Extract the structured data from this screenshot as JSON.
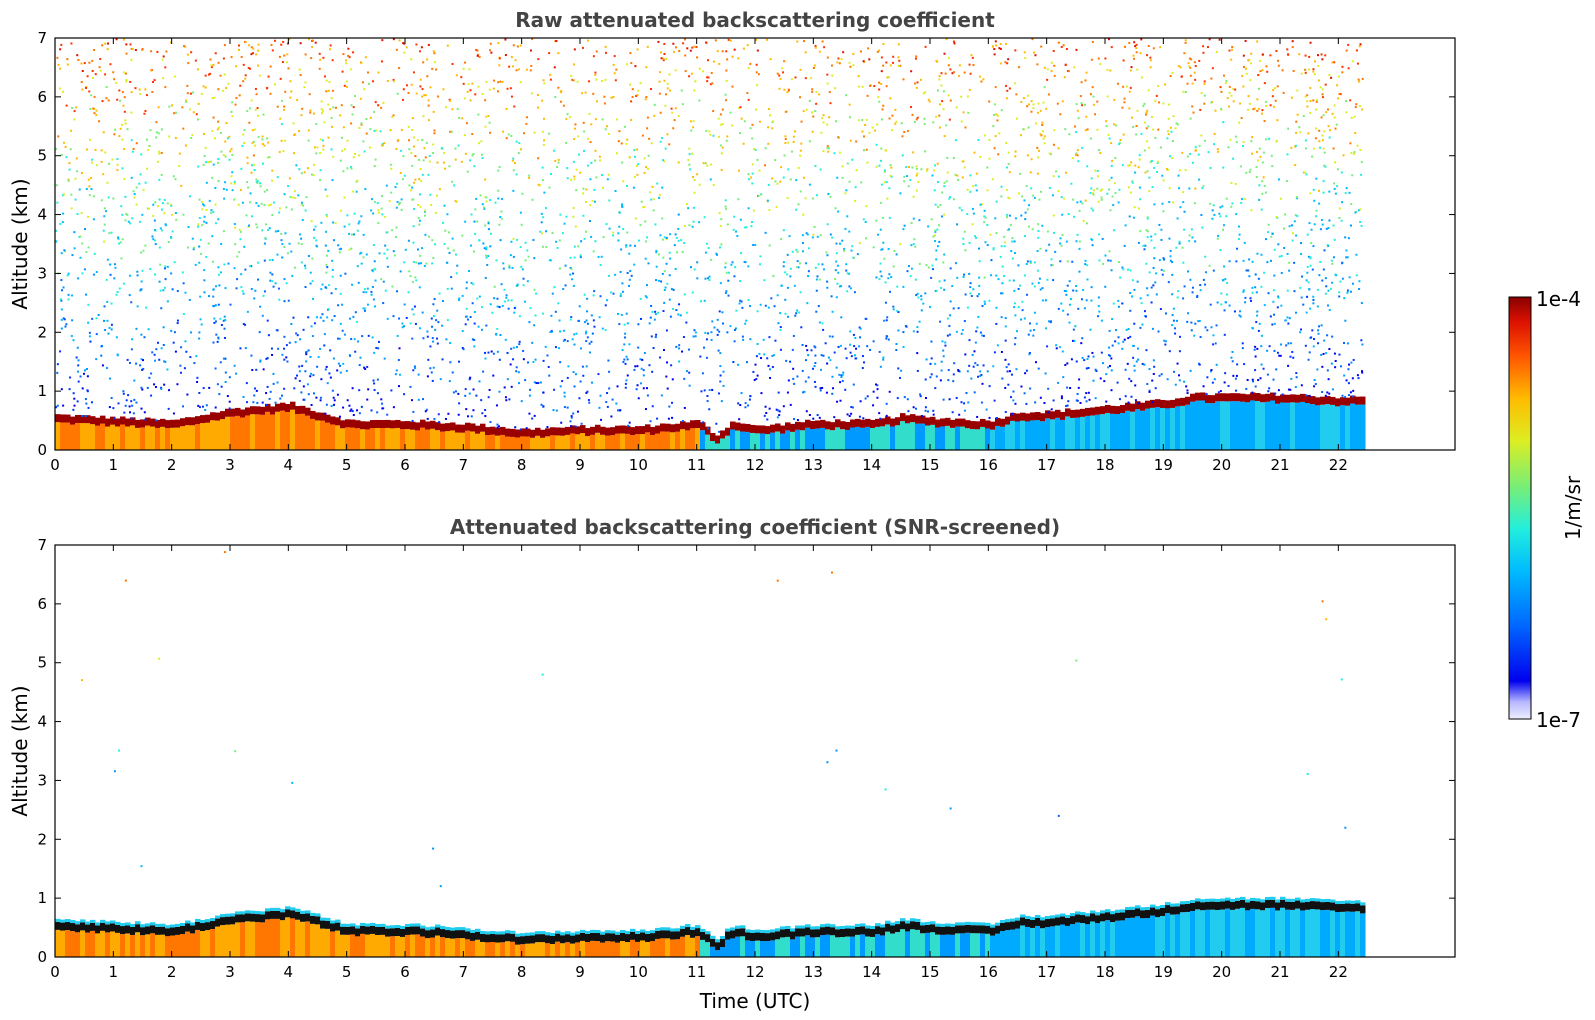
{
  "chart_data": [
    {
      "type": "heatmap",
      "title": "Raw attenuated backscattering coefficient",
      "xlabel": "",
      "ylabel": "Altitude (km)",
      "xlim": [
        0,
        24
      ],
      "ylim": [
        0,
        7
      ],
      "x_ticks": [
        "0",
        "1",
        "2",
        "3",
        "4",
        "5",
        "6",
        "7",
        "8",
        "9",
        "10",
        "11",
        "12",
        "13",
        "14",
        "15",
        "16",
        "17",
        "18",
        "19",
        "20",
        "21",
        "22"
      ],
      "y_ticks": [
        "0",
        "1",
        "2",
        "3",
        "4",
        "5",
        "6",
        "7"
      ],
      "data_end_time": 22.4,
      "layer_top": {
        "time": [
          0,
          1,
          2,
          3,
          4,
          5,
          6,
          7,
          8,
          9,
          10,
          11,
          11.3,
          11.6,
          12,
          13,
          14,
          14.5,
          15,
          16,
          16.5,
          17,
          18,
          19,
          19.5,
          20,
          21,
          22,
          22.4
        ],
        "altitude_km": [
          0.6,
          0.55,
          0.5,
          0.7,
          0.8,
          0.5,
          0.5,
          0.45,
          0.35,
          0.4,
          0.4,
          0.5,
          0.25,
          0.5,
          0.4,
          0.5,
          0.5,
          0.6,
          0.55,
          0.5,
          0.65,
          0.65,
          0.75,
          0.85,
          0.95,
          0.95,
          0.95,
          0.9,
          0.9
        ]
      },
      "screened": false,
      "colorbar": {
        "min": "1e-7",
        "max": "1e-4",
        "label": "1/m/sr",
        "colormap": "jet"
      }
    },
    {
      "type": "heatmap",
      "title": "Attenuated backscattering coefficient (SNR-screened)",
      "xlabel": "Time (UTC)",
      "ylabel": "Altitude (km)",
      "xlim": [
        0,
        24
      ],
      "ylim": [
        0,
        7
      ],
      "x_ticks": [
        "0",
        "1",
        "2",
        "3",
        "4",
        "5",
        "6",
        "7",
        "8",
        "9",
        "10",
        "11",
        "12",
        "13",
        "14",
        "15",
        "16",
        "17",
        "18",
        "19",
        "20",
        "21",
        "22"
      ],
      "y_ticks": [
        "0",
        "1",
        "2",
        "3",
        "4",
        "5",
        "6",
        "7"
      ],
      "data_end_time": 22.4,
      "layer_top": {
        "time": [
          0,
          1,
          2,
          3,
          4,
          5,
          6,
          7,
          8,
          9,
          10,
          11,
          11.3,
          11.6,
          12,
          13,
          14,
          14.5,
          15,
          16,
          16.5,
          17,
          18,
          19,
          19.5,
          20,
          21,
          22,
          22.4
        ],
        "altitude_km": [
          0.6,
          0.55,
          0.5,
          0.7,
          0.8,
          0.5,
          0.5,
          0.45,
          0.35,
          0.4,
          0.4,
          0.5,
          0.25,
          0.5,
          0.4,
          0.5,
          0.5,
          0.6,
          0.55,
          0.5,
          0.65,
          0.65,
          0.75,
          0.85,
          0.95,
          0.95,
          0.95,
          0.9,
          0.9
        ]
      },
      "screened": true,
      "colorbar": {
        "min": "1e-7",
        "max": "1e-4",
        "label": "1/m/sr",
        "colormap": "jet"
      }
    }
  ]
}
